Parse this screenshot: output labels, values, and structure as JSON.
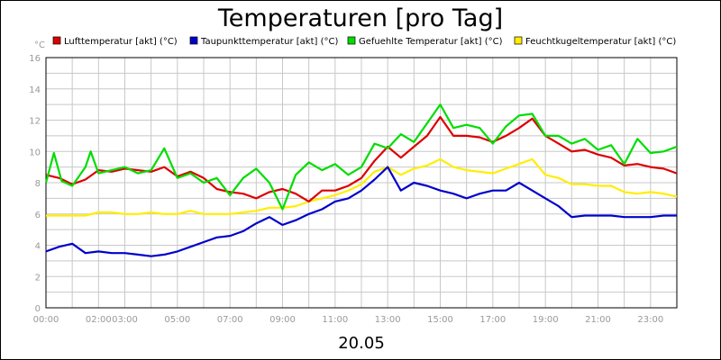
{
  "chart_data": {
    "type": "line",
    "title": "Temperaturen [pro Tag]",
    "ylabel": "°C",
    "xlabel": "20.05",
    "ylim": [
      0,
      16
    ],
    "xlim": [
      0,
      24
    ],
    "y_ticks": [
      "0",
      "2",
      "4",
      "6",
      "8",
      "10",
      "12",
      "14",
      "16"
    ],
    "x_ticks": [
      {
        "label": "00:00",
        "value": 0
      },
      {
        "label": "02:00",
        "value": 2
      },
      {
        "label": "03:00",
        "value": 3
      },
      {
        "label": "05:00",
        "value": 5
      },
      {
        "label": "07:00",
        "value": 7
      },
      {
        "label": "09:00",
        "value": 9
      },
      {
        "label": "11:00",
        "value": 11
      },
      {
        "label": "13:00",
        "value": 13
      },
      {
        "label": "15:00",
        "value": 15
      },
      {
        "label": "17:00",
        "value": 17
      },
      {
        "label": "19:00",
        "value": 19
      },
      {
        "label": "21:00",
        "value": 21
      },
      {
        "label": "23:00",
        "value": 23
      }
    ],
    "grid": true,
    "legend": "top",
    "series": [
      {
        "name": "Lufttemperatur [akt] (°C)",
        "color": "#dd0000",
        "points": [
          [
            0,
            8.5
          ],
          [
            0.5,
            8.3
          ],
          [
            1,
            7.9
          ],
          [
            1.5,
            8.2
          ],
          [
            2,
            8.8
          ],
          [
            2.5,
            8.7
          ],
          [
            3,
            8.9
          ],
          [
            3.5,
            8.8
          ],
          [
            4,
            8.7
          ],
          [
            4.5,
            9.0
          ],
          [
            5,
            8.4
          ],
          [
            5.5,
            8.7
          ],
          [
            6,
            8.3
          ],
          [
            6.5,
            7.6
          ],
          [
            7,
            7.4
          ],
          [
            7.5,
            7.3
          ],
          [
            8,
            7.0
          ],
          [
            8.5,
            7.4
          ],
          [
            9,
            7.6
          ],
          [
            9.5,
            7.3
          ],
          [
            10,
            6.8
          ],
          [
            10.5,
            7.5
          ],
          [
            11,
            7.5
          ],
          [
            11.5,
            7.8
          ],
          [
            12,
            8.3
          ],
          [
            12.5,
            9.4
          ],
          [
            13,
            10.3
          ],
          [
            13.5,
            9.6
          ],
          [
            14,
            10.3
          ],
          [
            14.5,
            11.0
          ],
          [
            15,
            12.2
          ],
          [
            15.5,
            11.0
          ],
          [
            16,
            11.0
          ],
          [
            16.5,
            10.9
          ],
          [
            17,
            10.6
          ],
          [
            17.5,
            11.0
          ],
          [
            18,
            11.5
          ],
          [
            18.5,
            12.1
          ],
          [
            19,
            11.0
          ],
          [
            19.5,
            10.5
          ],
          [
            20,
            10.0
          ],
          [
            20.5,
            10.1
          ],
          [
            21,
            9.8
          ],
          [
            21.5,
            9.6
          ],
          [
            22,
            9.1
          ],
          [
            22.5,
            9.2
          ],
          [
            23,
            9.0
          ],
          [
            23.5,
            8.9
          ],
          [
            24,
            8.6
          ]
        ]
      },
      {
        "name": "Taupunkttemperatur [akt] (°C)",
        "color": "#0000cc",
        "points": [
          [
            0,
            3.6
          ],
          [
            0.5,
            3.9
          ],
          [
            1,
            4.1
          ],
          [
            1.5,
            3.5
          ],
          [
            2,
            3.6
          ],
          [
            2.5,
            3.5
          ],
          [
            3,
            3.5
          ],
          [
            3.5,
            3.4
          ],
          [
            4,
            3.3
          ],
          [
            4.5,
            3.4
          ],
          [
            5,
            3.6
          ],
          [
            5.5,
            3.9
          ],
          [
            6,
            4.2
          ],
          [
            6.5,
            4.5
          ],
          [
            7,
            4.6
          ],
          [
            7.5,
            4.9
          ],
          [
            8,
            5.4
          ],
          [
            8.5,
            5.8
          ],
          [
            9,
            5.3
          ],
          [
            9.5,
            5.6
          ],
          [
            10,
            6.0
          ],
          [
            10.5,
            6.3
          ],
          [
            11,
            6.8
          ],
          [
            11.5,
            7.0
          ],
          [
            12,
            7.5
          ],
          [
            12.5,
            8.2
          ],
          [
            13,
            9.0
          ],
          [
            13.5,
            7.5
          ],
          [
            14,
            8.0
          ],
          [
            14.5,
            7.8
          ],
          [
            15,
            7.5
          ],
          [
            15.5,
            7.3
          ],
          [
            16,
            7.0
          ],
          [
            16.5,
            7.3
          ],
          [
            17,
            7.5
          ],
          [
            17.5,
            7.5
          ],
          [
            18,
            8.0
          ],
          [
            18.5,
            7.5
          ],
          [
            19,
            7.0
          ],
          [
            19.5,
            6.5
          ],
          [
            20,
            5.8
          ],
          [
            20.5,
            5.9
          ],
          [
            21,
            5.9
          ],
          [
            21.5,
            5.9
          ],
          [
            22,
            5.8
          ],
          [
            22.5,
            5.8
          ],
          [
            23,
            5.8
          ],
          [
            23.5,
            5.9
          ],
          [
            24,
            5.9
          ]
        ]
      },
      {
        "name": "Gefuehlte Temperatur [akt] (°C)",
        "color": "#00dd00",
        "points": [
          [
            0,
            8.0
          ],
          [
            0.3,
            9.9
          ],
          [
            0.6,
            8.1
          ],
          [
            1,
            7.8
          ],
          [
            1.5,
            9.0
          ],
          [
            1.7,
            10.0
          ],
          [
            2,
            8.6
          ],
          [
            2.5,
            8.8
          ],
          [
            3,
            9.0
          ],
          [
            3.5,
            8.6
          ],
          [
            4,
            8.8
          ],
          [
            4.5,
            10.2
          ],
          [
            5,
            8.3
          ],
          [
            5.5,
            8.6
          ],
          [
            6,
            8.0
          ],
          [
            6.5,
            8.3
          ],
          [
            7,
            7.2
          ],
          [
            7.5,
            8.3
          ],
          [
            8,
            8.9
          ],
          [
            8.5,
            8.0
          ],
          [
            9,
            6.3
          ],
          [
            9.5,
            8.5
          ],
          [
            10,
            9.3
          ],
          [
            10.5,
            8.8
          ],
          [
            11,
            9.2
          ],
          [
            11.5,
            8.5
          ],
          [
            12,
            9.0
          ],
          [
            12.5,
            10.5
          ],
          [
            13,
            10.2
          ],
          [
            13.5,
            11.1
          ],
          [
            14,
            10.6
          ],
          [
            14.5,
            11.8
          ],
          [
            15,
            13.0
          ],
          [
            15.5,
            11.5
          ],
          [
            16,
            11.7
          ],
          [
            16.5,
            11.5
          ],
          [
            17,
            10.5
          ],
          [
            17.5,
            11.6
          ],
          [
            18,
            12.3
          ],
          [
            18.5,
            12.4
          ],
          [
            19,
            11.0
          ],
          [
            19.5,
            11.0
          ],
          [
            20,
            10.5
          ],
          [
            20.5,
            10.8
          ],
          [
            21,
            10.1
          ],
          [
            21.5,
            10.4
          ],
          [
            22,
            9.2
          ],
          [
            22.5,
            10.8
          ],
          [
            23,
            9.9
          ],
          [
            23.5,
            10.0
          ],
          [
            24,
            10.3
          ]
        ]
      },
      {
        "name": "Feuchtkugeltemperatur [akt] (°C)",
        "color": "#ffee00",
        "points": [
          [
            0,
            5.9
          ],
          [
            0.5,
            5.9
          ],
          [
            1,
            5.9
          ],
          [
            1.5,
            5.9
          ],
          [
            2,
            6.1
          ],
          [
            2.5,
            6.1
          ],
          [
            3,
            6.0
          ],
          [
            3.5,
            6.0
          ],
          [
            4,
            6.1
          ],
          [
            4.5,
            6.0
          ],
          [
            5,
            6.0
          ],
          [
            5.5,
            6.2
          ],
          [
            6,
            6.0
          ],
          [
            6.5,
            6.0
          ],
          [
            7,
            6.0
          ],
          [
            7.5,
            6.1
          ],
          [
            8,
            6.2
          ],
          [
            8.5,
            6.4
          ],
          [
            9,
            6.4
          ],
          [
            9.5,
            6.5
          ],
          [
            10,
            6.8
          ],
          [
            10.5,
            7.0
          ],
          [
            11,
            7.2
          ],
          [
            11.5,
            7.5
          ],
          [
            12,
            7.9
          ],
          [
            12.5,
            8.7
          ],
          [
            13,
            9.0
          ],
          [
            13.5,
            8.5
          ],
          [
            14,
            8.9
          ],
          [
            14.5,
            9.1
          ],
          [
            15,
            9.5
          ],
          [
            15.5,
            9.0
          ],
          [
            16,
            8.8
          ],
          [
            16.5,
            8.7
          ],
          [
            17,
            8.6
          ],
          [
            17.5,
            8.9
          ],
          [
            18,
            9.2
          ],
          [
            18.5,
            9.5
          ],
          [
            19,
            8.5
          ],
          [
            19.5,
            8.3
          ],
          [
            20,
            7.9
          ],
          [
            20.5,
            7.9
          ],
          [
            21,
            7.8
          ],
          [
            21.5,
            7.8
          ],
          [
            22,
            7.4
          ],
          [
            22.5,
            7.3
          ],
          [
            23,
            7.4
          ],
          [
            23.5,
            7.3
          ],
          [
            24,
            7.1
          ]
        ]
      }
    ]
  }
}
